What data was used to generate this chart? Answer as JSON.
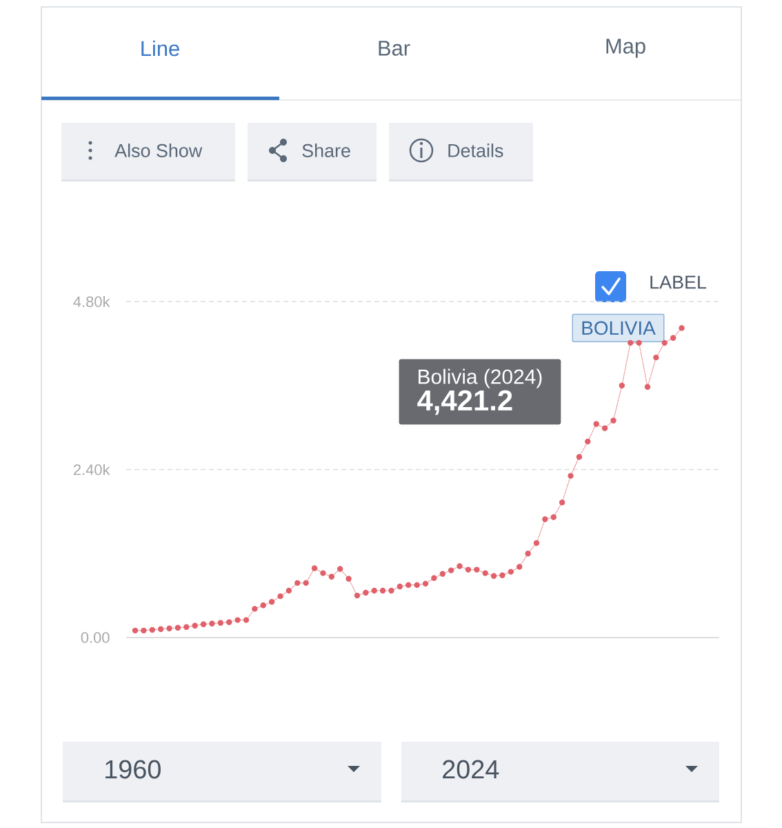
{
  "chart_data": {
    "type": "line",
    "categories": [
      null,
      null,
      null,
      null,
      null,
      null,
      null,
      null,
      null,
      null,
      null,
      null,
      null,
      null,
      null,
      null,
      null,
      null,
      null,
      null,
      null,
      null,
      null,
      null,
      null,
      null,
      null,
      null,
      null,
      null,
      null,
      null,
      null,
      null,
      null,
      null,
      null,
      null,
      null,
      null,
      null,
      null,
      null,
      null,
      null,
      null,
      null,
      null,
      null,
      null,
      null,
      null,
      null,
      null,
      null,
      null,
      null,
      null,
      null,
      null,
      null,
      null,
      null,
      null,
      null
    ],
    "series": [
      {
        "name": "BOLIVIA",
        "color": "#e0606a",
        "values": [
          100,
          100,
          110,
          120,
          130,
          140,
          150,
          170,
          190,
          200,
          210,
          220,
          250,
          250,
          410,
          460,
          510,
          590,
          670,
          780,
          780,
          990,
          920,
          870,
          980,
          840,
          600,
          640,
          670,
          670,
          670,
          730,
          750,
          750,
          770,
          850,
          910,
          960,
          1020,
          970,
          970,
          920,
          880,
          890,
          940,
          1010,
          1200,
          1350,
          1690,
          1720,
          1930,
          2310,
          2580,
          2800,
          3050,
          2990,
          3100,
          3600,
          4210,
          4210,
          3580,
          4000,
          4210,
          4280,
          4421.2
        ]
      }
    ],
    "ylim": [
      0,
      4800
    ],
    "yticks": [
      {
        "value": 0,
        "label": "0.00"
      },
      {
        "value": 2400,
        "label": "2.40k"
      },
      {
        "value": 4800,
        "label": "4.80k"
      }
    ],
    "tick_labels": "y",
    "grid": "y",
    "legend": "top right",
    "marker": "circle",
    "line_style": "dotted",
    "annotations": [
      "Line",
      "Bar",
      "Map",
      "Also Show",
      "Share",
      "Details",
      "LABEL",
      "1960",
      "2024",
      "Bolivia (2024)",
      "4,421.2"
    ]
  }
}
